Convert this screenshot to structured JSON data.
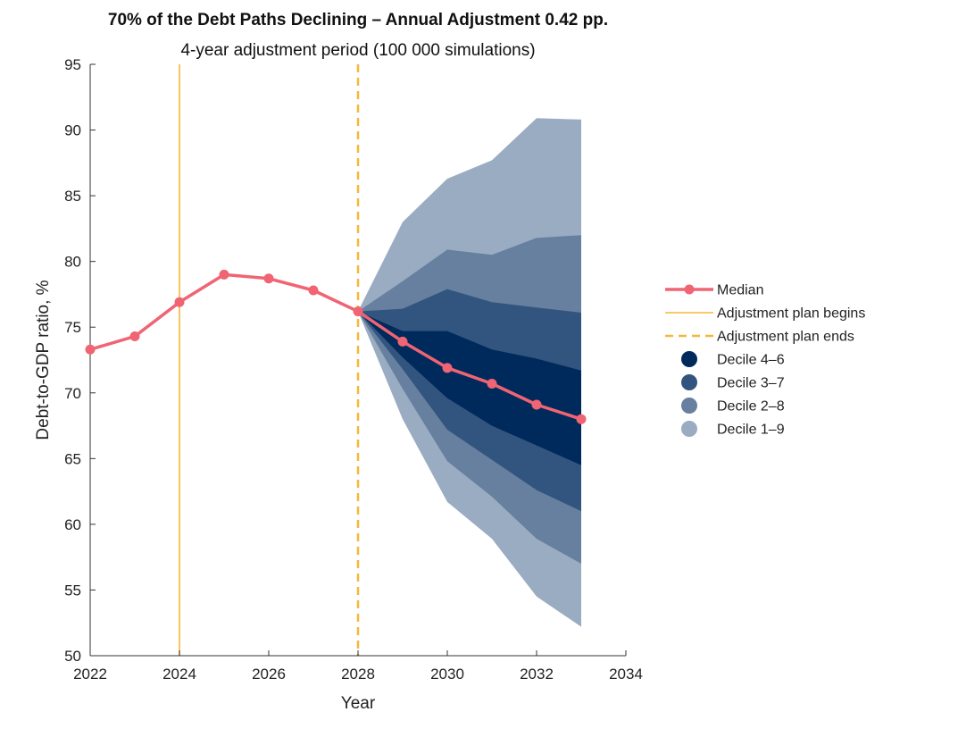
{
  "chart_data": {
    "type": "area",
    "title": "70% of the Debt Paths Declining – Annual Adjustment 0.42 pp.",
    "subtitle": "4-year adjustment period (100 000 simulations)",
    "xlabel": "Year",
    "ylabel": "Debt-to-GDP ratio, %",
    "xlim": [
      2022,
      2034
    ],
    "ylim": [
      50,
      95
    ],
    "xticks": [
      2022,
      2024,
      2026,
      2028,
      2030,
      2032,
      2034
    ],
    "yticks": [
      50,
      55,
      60,
      65,
      70,
      75,
      80,
      85,
      90,
      95
    ],
    "grid": false,
    "legend_position": "right",
    "series": [
      {
        "name": "Median",
        "kind": "line",
        "color": "#F06473",
        "x": [
          2022,
          2023,
          2024,
          2025,
          2026,
          2027,
          2028,
          2029,
          2030,
          2031,
          2032,
          2033
        ],
        "values": [
          73.3,
          74.3,
          76.9,
          79.0,
          78.7,
          77.8,
          76.2,
          73.9,
          71.9,
          70.7,
          69.1,
          68.0
        ]
      },
      {
        "name": "Adjustment plan begins",
        "kind": "vline",
        "color": "#F5B73A",
        "x": 2024
      },
      {
        "name": "Adjustment plan ends",
        "kind": "vline-dashed",
        "color": "#F5B73A",
        "x": 2028
      }
    ],
    "bands": [
      {
        "name": "Decile 1–9",
        "color": "#9AACC2",
        "x": [
          2028,
          2029,
          2030,
          2031,
          2032,
          2033
        ],
        "lower": [
          76.2,
          68.0,
          61.7,
          58.9,
          54.5,
          52.2
        ],
        "upper": [
          76.2,
          83.0,
          86.3,
          87.7,
          90.9,
          90.8
        ]
      },
      {
        "name": "Decile 2–8",
        "color": "#67809F",
        "x": [
          2028,
          2029,
          2030,
          2031,
          2032,
          2033
        ],
        "lower": [
          76.2,
          70.3,
          64.8,
          62.1,
          58.9,
          57.0
        ],
        "upper": [
          76.2,
          78.5,
          80.9,
          80.5,
          81.8,
          82.0
        ]
      },
      {
        "name": "Decile 3–7",
        "color": "#32557F",
        "x": [
          2028,
          2029,
          2030,
          2031,
          2032,
          2033
        ],
        "lower": [
          76.2,
          71.8,
          67.2,
          64.9,
          62.6,
          61.0
        ],
        "upper": [
          76.2,
          76.4,
          77.9,
          76.9,
          76.5,
          76.1
        ]
      },
      {
        "name": "Decile 4–6",
        "color": "#012A5C",
        "x": [
          2028,
          2029,
          2030,
          2031,
          2032,
          2033
        ],
        "lower": [
          76.2,
          72.7,
          69.6,
          67.5,
          66.0,
          64.5
        ],
        "upper": [
          76.2,
          74.7,
          74.7,
          73.3,
          72.6,
          71.7
        ]
      }
    ],
    "legend": [
      {
        "label": "Median",
        "kind": "line-marker",
        "color": "#F06473"
      },
      {
        "label": "Adjustment plan begins",
        "kind": "line",
        "color": "#F5B73A"
      },
      {
        "label": "Adjustment plan ends",
        "kind": "dashed",
        "color": "#F5B73A"
      },
      {
        "label": "Decile 4–6",
        "kind": "dot",
        "color": "#012A5C"
      },
      {
        "label": "Decile 3–7",
        "kind": "dot",
        "color": "#32557F"
      },
      {
        "label": "Decile 2–8",
        "kind": "dot",
        "color": "#67809F"
      },
      {
        "label": "Decile 1–9",
        "kind": "dot",
        "color": "#9AACC2"
      }
    ]
  }
}
